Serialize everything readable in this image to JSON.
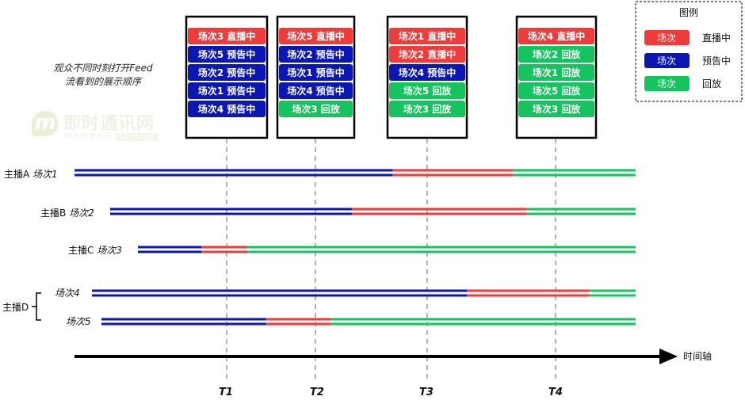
{
  "feed_note": "观众不同时刻打开Feed\n流看到的展示顺序",
  "watermark": {
    "logo_letter": "m",
    "title": "即时通讯网",
    "subtitle": "IM开发者社区",
    "badge": "52im.net"
  },
  "colors": {
    "live": "#f03b3b",
    "preview": "#0b17b4",
    "replay": "#15c45e",
    "border": "#000000",
    "dash": "#999999"
  },
  "legend": {
    "title": "图例",
    "items": [
      {
        "swatch_text": "场次",
        "label": "直播中",
        "status": "live"
      },
      {
        "swatch_text": "场次",
        "label": "预告中",
        "status": "preview"
      },
      {
        "swatch_text": "场次",
        "label": "回放",
        "status": "replay"
      }
    ]
  },
  "snapshots": [
    {
      "time": "T1",
      "items": [
        {
          "text": "场次3 直播中",
          "status": "live"
        },
        {
          "text": "场次5 预告中",
          "status": "preview"
        },
        {
          "text": "场次2 预告中",
          "status": "preview"
        },
        {
          "text": "场次1 预告中",
          "status": "preview"
        },
        {
          "text": "场次4 预告中",
          "status": "preview"
        }
      ]
    },
    {
      "time": "T2",
      "items": [
        {
          "text": "场次5 直播中",
          "status": "live"
        },
        {
          "text": "场次2 预告中",
          "status": "preview"
        },
        {
          "text": "场次1 预告中",
          "status": "preview"
        },
        {
          "text": "场次4 预告中",
          "status": "preview"
        },
        {
          "text": "场次3 回放",
          "status": "replay"
        }
      ]
    },
    {
      "time": "T3",
      "items": [
        {
          "text": "场次1 直播中",
          "status": "live"
        },
        {
          "text": "场次2 直播中",
          "status": "live"
        },
        {
          "text": "场次4 预告中",
          "status": "preview"
        },
        {
          "text": "场次5 回放",
          "status": "replay"
        },
        {
          "text": "场次3 回放",
          "status": "replay"
        }
      ]
    },
    {
      "time": "T4",
      "items": [
        {
          "text": "场次4 直播中",
          "status": "live"
        },
        {
          "text": "场次2 回放",
          "status": "replay"
        },
        {
          "text": "场次1 回放",
          "status": "replay"
        },
        {
          "text": "场次5 回放",
          "status": "replay"
        },
        {
          "text": "场次3 回放",
          "status": "replay"
        }
      ]
    }
  ],
  "lanes": [
    {
      "host": "主播A",
      "session": "场次1",
      "segments": [
        [
          "preview",
          0,
          0.567
        ],
        [
          "live",
          0.567,
          0.781
        ],
        [
          "replay",
          0.781,
          1
        ]
      ]
    },
    {
      "host": "主播B",
      "session": "场次2",
      "segments": [
        [
          "preview",
          0,
          0.46
        ],
        [
          "live",
          0.46,
          0.793
        ],
        [
          "replay",
          0.793,
          1
        ]
      ]
    },
    {
      "host": "主播C",
      "session": "场次3",
      "segments": [
        [
          "preview",
          0,
          0.128
        ],
        [
          "live",
          0.128,
          0.22
        ],
        [
          "replay",
          0.22,
          1
        ]
      ]
    },
    {
      "host": "主播D",
      "session": "场次4",
      "segments": [
        [
          "preview",
          0,
          0.69
        ],
        [
          "live",
          0.69,
          0.916
        ],
        [
          "replay",
          0.916,
          1
        ]
      ]
    },
    {
      "host": "",
      "session": "场次5",
      "segments": [
        [
          "preview",
          0,
          0.308
        ],
        [
          "live",
          0.308,
          0.429
        ],
        [
          "replay",
          0.429,
          1
        ]
      ]
    }
  ],
  "time_axis_label": "时间轴"
}
